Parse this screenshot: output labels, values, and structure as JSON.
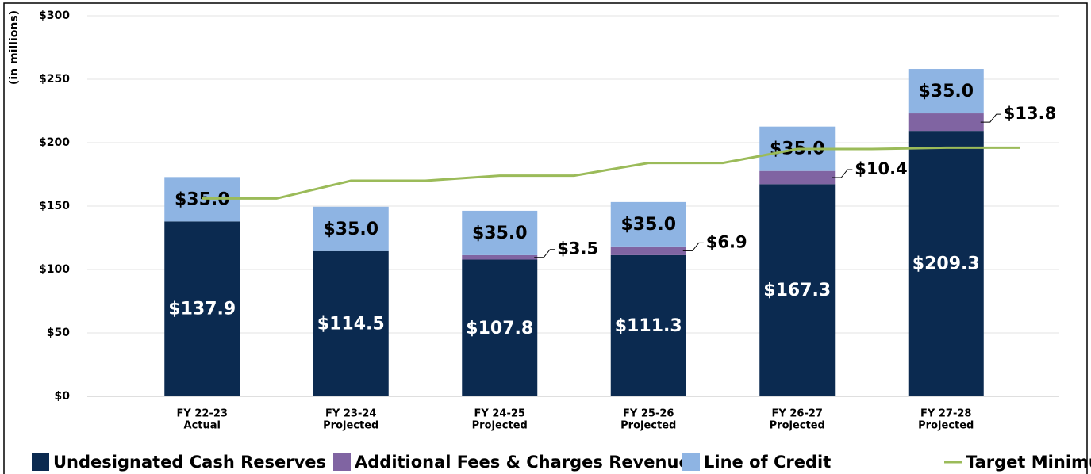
{
  "chart_data": {
    "type": "stacked-bar-line",
    "y_label": "(in millions)",
    "categories": [
      [
        "FY 22-23",
        "Actual"
      ],
      [
        "FY 23-24",
        "Projected"
      ],
      [
        "FY 24-25",
        "Projected"
      ],
      [
        "FY 25-26",
        "Projected"
      ],
      [
        "FY 26-27",
        "Projected"
      ],
      [
        "FY 27-28",
        "Projected"
      ]
    ],
    "series": [
      {
        "name": "Undesignated Cash Reserves",
        "color": "#0b2a50",
        "values": [
          137.9,
          114.5,
          107.8,
          111.3,
          167.3,
          209.3
        ],
        "value_labels": [
          "$137.9",
          "$114.5",
          "$107.8",
          "$111.3",
          "$167.3",
          "$209.3"
        ]
      },
      {
        "name": "Additional Fees & Charges Revenue",
        "color": "#8064a2",
        "values": [
          null,
          null,
          3.5,
          6.9,
          10.4,
          13.8
        ],
        "value_labels": [
          null,
          null,
          "$3.5",
          "$6.9",
          "$10.4",
          "$13.8"
        ]
      },
      {
        "name": "Line of Credit",
        "color": "#8eb4e3",
        "values": [
          35.0,
          35.0,
          35.0,
          35.0,
          35.0,
          35.0
        ],
        "value_labels": [
          "$35.0",
          "$35.0",
          "$35.0",
          "$35.0",
          "$35.0",
          "$35.0"
        ]
      },
      {
        "name": "Target Minimum",
        "color": "#9bbb59",
        "type": "line",
        "values": [
          156,
          170,
          174,
          184,
          195,
          196
        ]
      }
    ],
    "ylim": [
      0,
      300
    ],
    "yticks": [
      {
        "value": 0,
        "label": "$0"
      },
      {
        "value": 50,
        "label": "$50"
      },
      {
        "value": 100,
        "label": "$100"
      },
      {
        "value": 150,
        "label": "$150"
      },
      {
        "value": 200,
        "label": "$200"
      },
      {
        "value": 250,
        "label": "$250"
      },
      {
        "value": 300,
        "label": "$300"
      }
    ],
    "grid": true,
    "legend": "bottom"
  }
}
